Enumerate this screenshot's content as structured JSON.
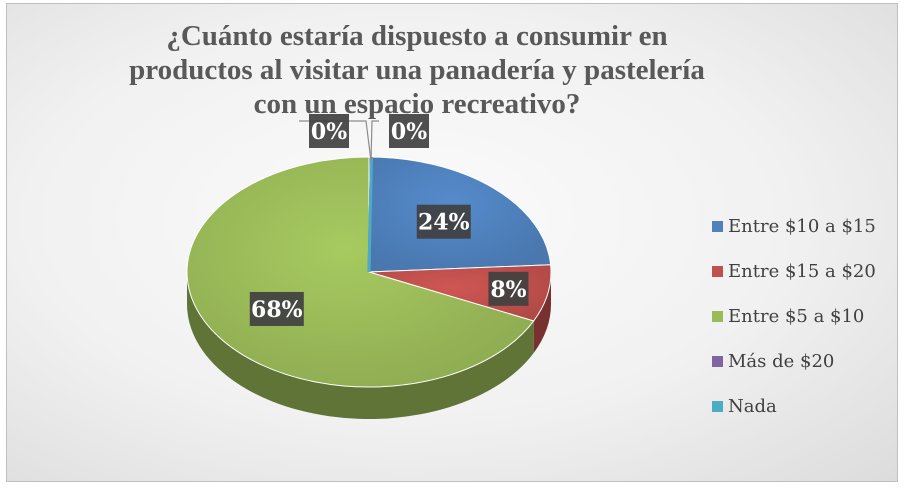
{
  "chart_data": {
    "type": "pie",
    "title": "¿Cuánto estaría dispuesto a consumir en productos al visitar una panadería y pastelería con un espacio recreativo?",
    "style": "3d",
    "legend_position": "right",
    "slices": [
      {
        "label": "Entre $10 a $15",
        "value": 24,
        "display": "24%",
        "color": "#4f81bd"
      },
      {
        "label": "Entre $15 a $20",
        "value": 8,
        "display": "8%",
        "color": "#c0504d"
      },
      {
        "label": "Entre $5 a $10",
        "value": 68,
        "display": "68%",
        "color": "#9bbb59"
      },
      {
        "label": "Más de $20",
        "value": 0,
        "display": "0%",
        "color": "#8064a2"
      },
      {
        "label": "Nada",
        "value": 0,
        "display": "0%",
        "color": "#4bacc6"
      }
    ]
  }
}
